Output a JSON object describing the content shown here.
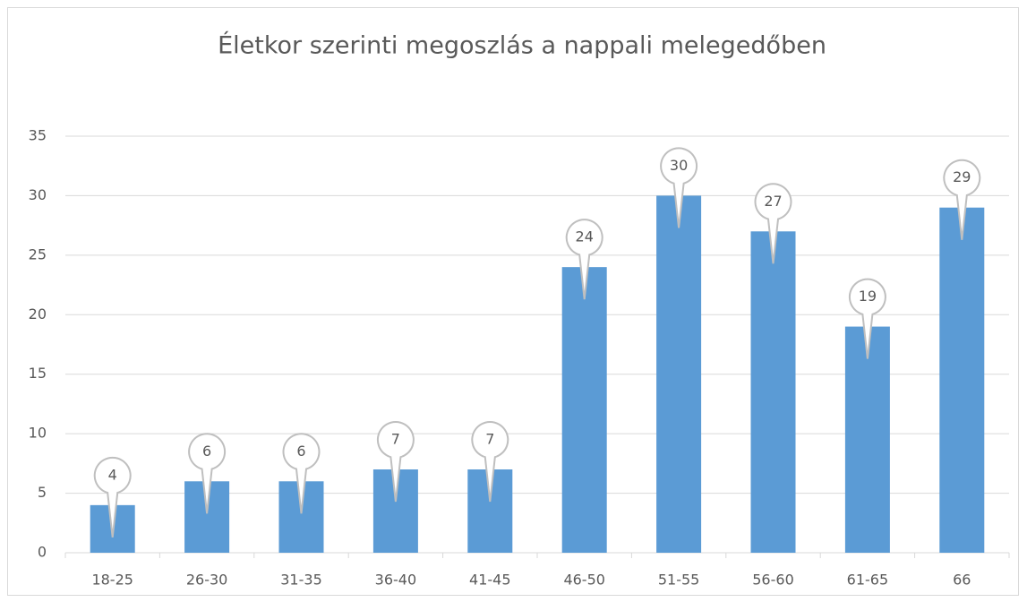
{
  "chart_data": {
    "type": "bar",
    "title": "Életkor szerinti megoszlás a nappali melegedőben",
    "categories": [
      "18-25",
      "26-30",
      "31-35",
      "36-40",
      "41-45",
      "46-50",
      "51-55",
      "56-60",
      "61-65",
      "66"
    ],
    "values": [
      4,
      6,
      6,
      7,
      7,
      24,
      30,
      27,
      19,
      29
    ],
    "color": "#5b9bd5",
    "ylim": [
      0,
      35
    ],
    "yticks": [
      0,
      5,
      10,
      15,
      20,
      25,
      30,
      35
    ],
    "grid": true
  }
}
